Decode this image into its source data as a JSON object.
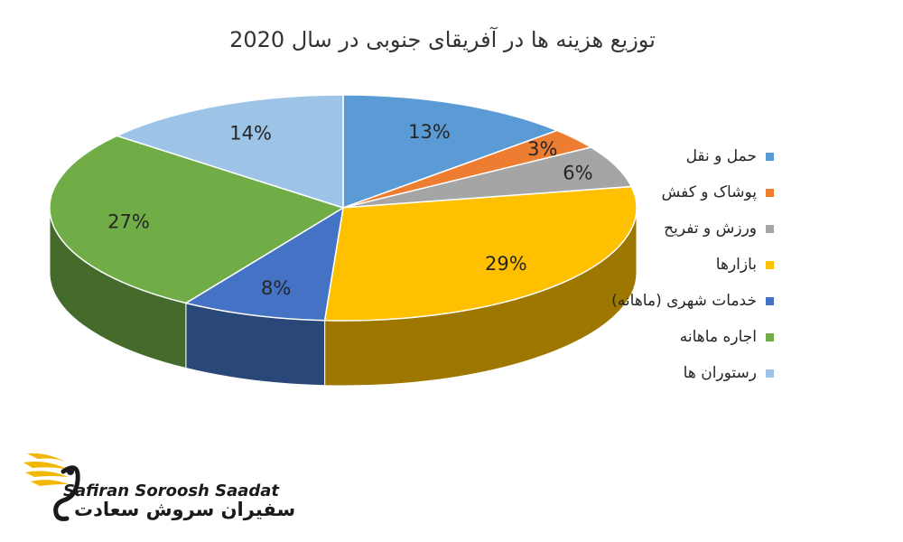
{
  "chart_data": {
    "type": "pie",
    "title": "توزیع هزینه ها در آفریقای جنوبی در سال 2020",
    "categories": [
      "حمل و نقل",
      "پوشاک و کفش",
      "ورزش و تفریح",
      "بازارها",
      "خدمات شهری (ماهانه)",
      "اجاره ماهانه",
      "رستوران ها"
    ],
    "values": [
      13,
      3,
      6,
      29,
      8,
      27,
      14
    ],
    "labels": [
      "13%",
      "3%",
      "6%",
      "29%",
      "8%",
      "27%",
      "14%"
    ],
    "colors": [
      "#5B9BD5",
      "#ED7D31",
      "#A5A5A5",
      "#FFC000",
      "#4472C4",
      "#70AD47",
      "#9DC3E6"
    ],
    "legend_position": "right",
    "style": "3d"
  },
  "logo": {
    "english": "Safiran Soroosh Saadat",
    "persian": "سفیران سروش سعادت"
  }
}
